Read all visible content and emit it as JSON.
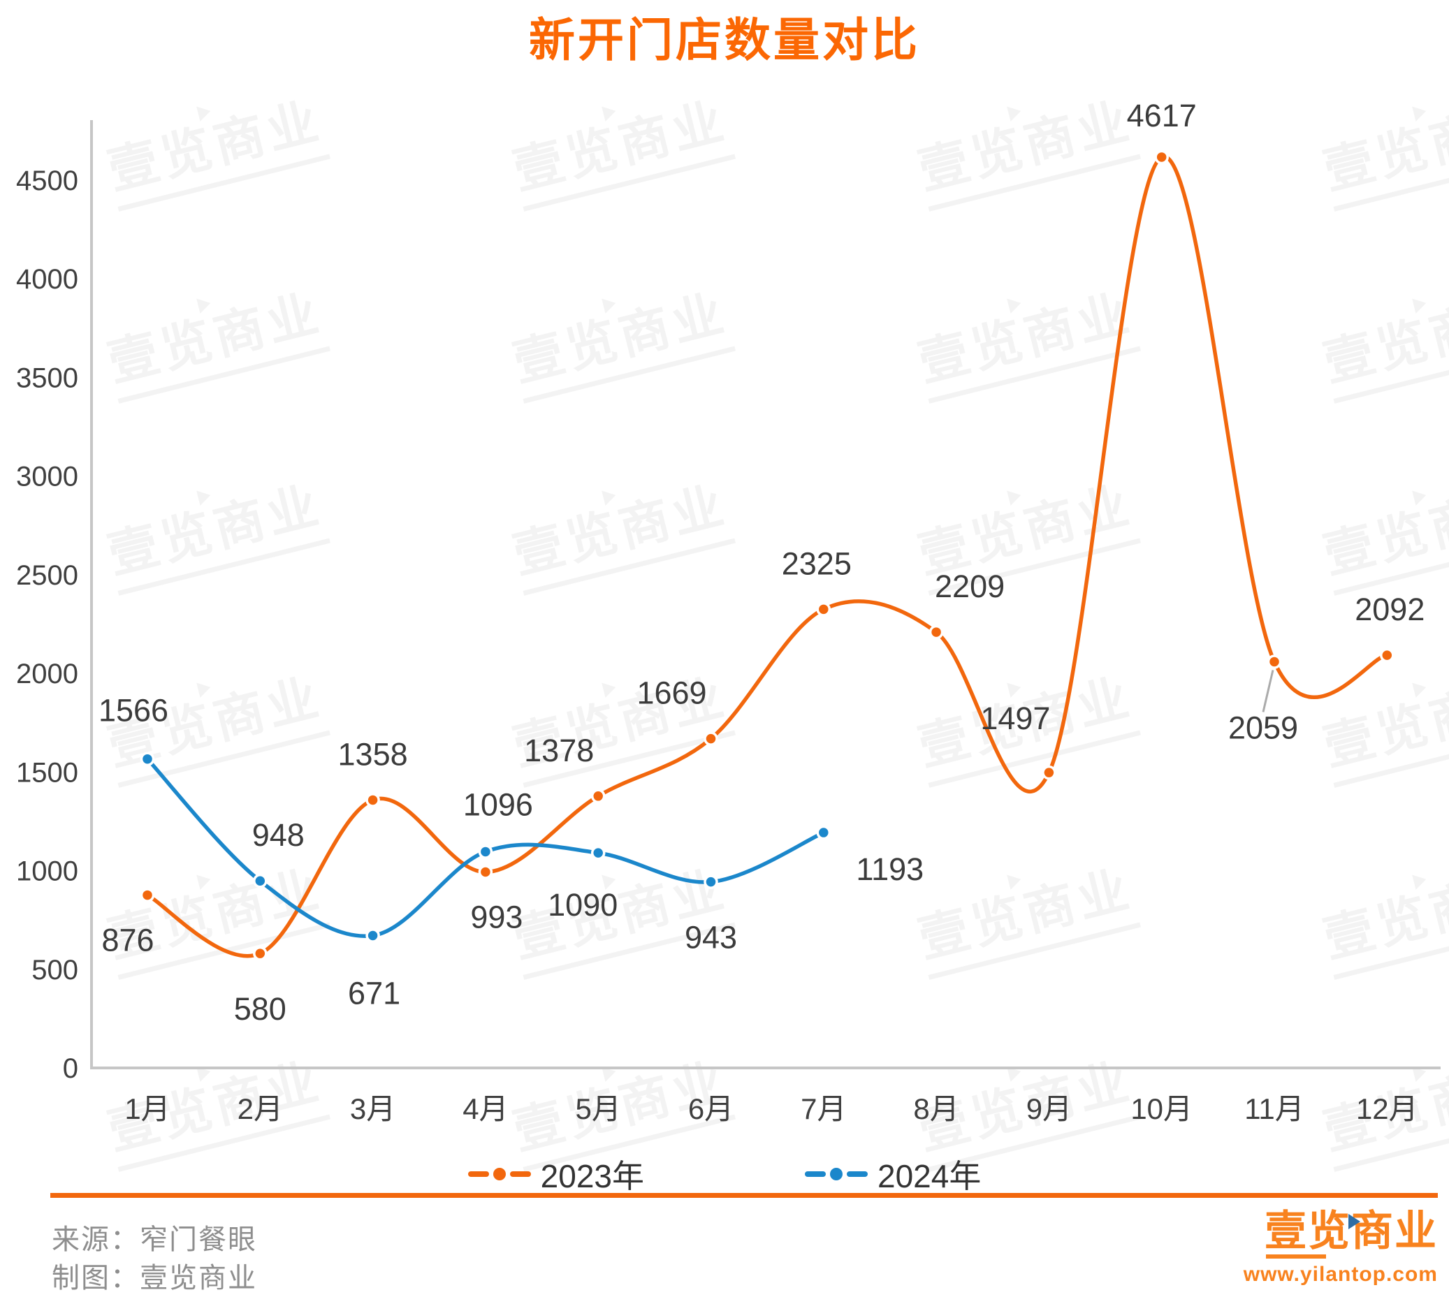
{
  "title": "新开门店数量对比",
  "chart_data": {
    "type": "line",
    "smooth": true,
    "grid": false,
    "legend_position": "bottom",
    "categories": [
      "1月",
      "2月",
      "3月",
      "4月",
      "5月",
      "6月",
      "7月",
      "8月",
      "9月",
      "10月",
      "11月",
      "12月"
    ],
    "series": [
      {
        "name": "2023年",
        "color": "#F2670D",
        "values": [
          876,
          580,
          1358,
          993,
          1378,
          1669,
          2325,
          2209,
          1497,
          4617,
          2059,
          2092
        ]
      },
      {
        "name": "2024年",
        "color": "#1B87CB",
        "values": [
          1566,
          948,
          671,
          1096,
          1090,
          943,
          1193
        ]
      }
    ],
    "ylabel": "",
    "xlabel": "",
    "ylim": [
      0,
      4500
    ],
    "ytick_step": 500,
    "data_labels": true
  },
  "footer": {
    "source": "来源：窄门餐眼",
    "credit": "制图：壹览商业"
  },
  "logo": {
    "text": "壹览商业",
    "url": "www.yilantop.com"
  },
  "watermark": {
    "text": "壹览商业"
  },
  "colors": {
    "title_orange": "#FB6703",
    "series_orange": "#F2670D",
    "series_blue": "#1B87CB",
    "divider_orange": "#F2670D",
    "axis_gray": "#C6C6C6",
    "label_gray": "#3B3B3B",
    "footer_gray": "#8E8E8E"
  }
}
